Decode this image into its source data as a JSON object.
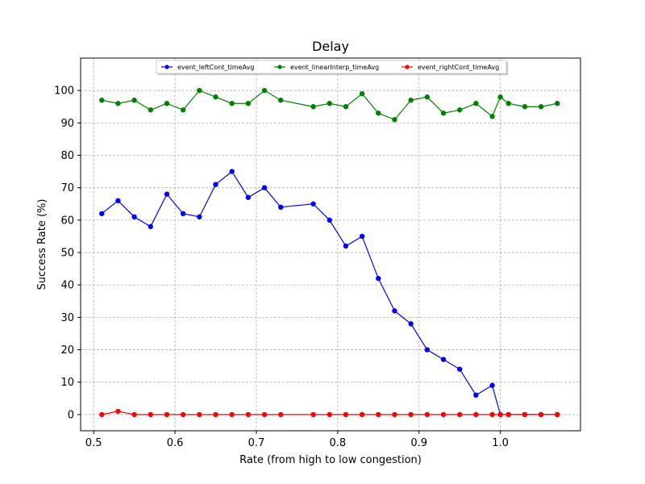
{
  "chart_data": {
    "type": "line",
    "title": "Delay",
    "xlabel": "Rate (from high to low congestion)",
    "ylabel": "Success Rate (%)",
    "xlim": [
      0.484,
      1.0985
    ],
    "ylim": [
      -5,
      110
    ],
    "xticks": [
      0.5,
      0.6,
      0.7,
      0.8,
      0.9,
      1.0
    ],
    "xtick_labels": [
      "0.5",
      "0.6",
      "0.7",
      "0.8",
      "0.9",
      "1.0"
    ],
    "yticks": [
      0,
      10,
      20,
      30,
      40,
      50,
      60,
      70,
      80,
      90,
      100
    ],
    "ytick_labels": [
      "0",
      "10",
      "20",
      "30",
      "40",
      "50",
      "60",
      "70",
      "80",
      "90",
      "100"
    ],
    "grid": true,
    "legend_position": "top",
    "series": [
      {
        "name": "event_leftCont_timeAvg",
        "color": "#0000ff",
        "x": [
          0.51,
          0.53,
          0.55,
          0.57,
          0.59,
          0.61,
          0.63,
          0.65,
          0.67,
          0.69,
          0.71,
          0.73,
          0.77,
          0.79,
          0.81,
          0.83,
          0.85,
          0.87,
          0.89,
          0.91,
          0.93,
          0.95,
          0.97,
          0.99,
          1.0,
          1.01,
          1.03,
          1.05,
          1.07
        ],
        "y": [
          62,
          66,
          61,
          58,
          68,
          62,
          61,
          71,
          75,
          67,
          70,
          64,
          65,
          60,
          52,
          55,
          42,
          32,
          28,
          20,
          17,
          14,
          6,
          9,
          0,
          0,
          0,
          0,
          0
        ]
      },
      {
        "name": "event_linearInterp_timeAvg",
        "color": "#008000",
        "x": [
          0.51,
          0.53,
          0.55,
          0.57,
          0.59,
          0.61,
          0.63,
          0.65,
          0.67,
          0.69,
          0.71,
          0.73,
          0.77,
          0.79,
          0.81,
          0.83,
          0.85,
          0.87,
          0.89,
          0.91,
          0.93,
          0.95,
          0.97,
          0.99,
          1.0,
          1.01,
          1.03,
          1.05,
          1.07
        ],
        "y": [
          97,
          96,
          97,
          94,
          96,
          94,
          100,
          98,
          96,
          96,
          100,
          97,
          95,
          96,
          95,
          99,
          93,
          91,
          97,
          98,
          93,
          94,
          96,
          92,
          98,
          96,
          95,
          95,
          96
        ]
      },
      {
        "name": "event_rightCont_timeAvg",
        "color": "#ff0000",
        "x": [
          0.51,
          0.53,
          0.55,
          0.57,
          0.59,
          0.61,
          0.63,
          0.65,
          0.67,
          0.69,
          0.71,
          0.73,
          0.77,
          0.79,
          0.81,
          0.83,
          0.85,
          0.87,
          0.89,
          0.91,
          0.93,
          0.95,
          0.97,
          0.99,
          1.0,
          1.01,
          1.03,
          1.05,
          1.07
        ],
        "y": [
          0,
          1,
          0,
          0,
          0,
          0,
          0,
          0,
          0,
          0,
          0,
          0,
          0,
          0,
          0,
          0,
          0,
          0,
          0,
          0,
          0,
          0,
          0,
          0,
          0,
          0,
          0,
          0,
          0
        ]
      }
    ]
  }
}
